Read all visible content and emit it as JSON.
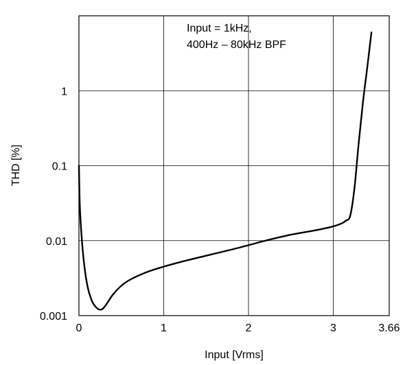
{
  "chart_data": {
    "type": "line",
    "title": "",
    "xlabel": "Input [Vrms]",
    "ylabel": "THD [%]",
    "x_scale": "linear",
    "y_scale": "log",
    "xlim": [
      0,
      3.66
    ],
    "ylim": [
      0.001,
      10
    ],
    "grid": true,
    "xticks": [
      {
        "value": 0,
        "label": "0"
      },
      {
        "value": 1,
        "label": "1"
      },
      {
        "value": 2,
        "label": "2"
      },
      {
        "value": 3,
        "label": "3"
      },
      {
        "value": 3.66,
        "label": "3.66"
      }
    ],
    "yticks": [
      {
        "value": 0.001,
        "label": "0.001"
      },
      {
        "value": 0.01,
        "label": "0.01"
      },
      {
        "value": 0.1,
        "label": "0.1"
      },
      {
        "value": 1,
        "label": "1"
      }
    ],
    "annotation": {
      "line1": "Input = 1kHz,",
      "line2": "400Hz – 80kHz BPF"
    },
    "series": [
      {
        "x": [
          0.0,
          0.01,
          0.03,
          0.06,
          0.1,
          0.15,
          0.2,
          0.25,
          0.3,
          0.4,
          0.5,
          0.6,
          0.8,
          1.0,
          1.2,
          1.5,
          1.8,
          2.0,
          2.2,
          2.5,
          2.8,
          3.0,
          3.1,
          3.15,
          3.2,
          3.25,
          3.3,
          3.35,
          3.4,
          3.45
        ],
        "y": [
          0.1,
          0.03,
          0.012,
          0.005,
          0.0025,
          0.0016,
          0.0013,
          0.0012,
          0.0013,
          0.0019,
          0.0025,
          0.003,
          0.0038,
          0.0045,
          0.0052,
          0.0063,
          0.0076,
          0.0087,
          0.01,
          0.012,
          0.0138,
          0.0155,
          0.017,
          0.0185,
          0.0215,
          0.05,
          0.2,
          0.7,
          2.0,
          6.0
        ]
      }
    ]
  }
}
